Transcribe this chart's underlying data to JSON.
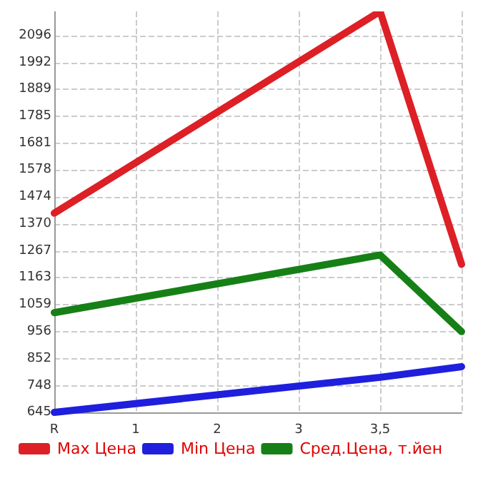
{
  "chart_data": {
    "type": "line",
    "categories": [
      "R",
      "1",
      "2",
      "3",
      "3,5",
      null
    ],
    "series": [
      {
        "name": "Max Цена",
        "color": "#dd1f26",
        "values": [
          1412,
          null,
          null,
          null,
          2189,
          1215
        ]
      },
      {
        "name": "Min Цена",
        "color": "#1f1fdd",
        "values": [
          645,
          null,
          null,
          null,
          780,
          821
        ]
      },
      {
        "name": "Сред.Цена, т.йен",
        "color": "#168016",
        "values": [
          1029,
          null,
          null,
          null,
          1251,
          956
        ]
      }
    ],
    "ylim": [
      645,
      2189
    ],
    "yticks": [
      645,
      748,
      852,
      956,
      1059,
      1163,
      1267,
      1370,
      1474,
      1578,
      1681,
      1785,
      1889,
      1992,
      2096
    ],
    "grid": true,
    "legend": "bottom",
    "marker": "none",
    "line_style": "solid"
  }
}
